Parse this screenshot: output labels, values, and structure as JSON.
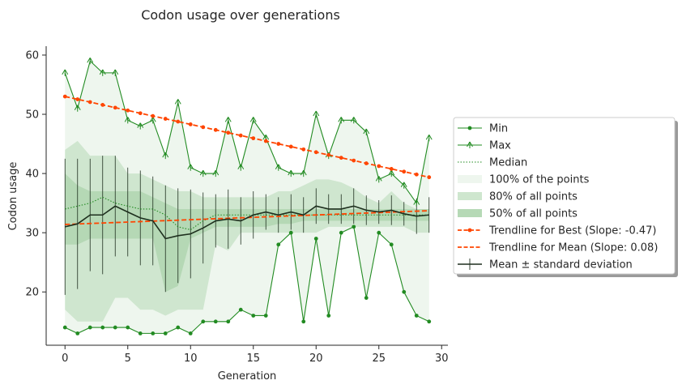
{
  "chart_data": {
    "type": "line",
    "title": "Codon usage over generations",
    "xlabel": "Generation",
    "ylabel": "Codon usage",
    "xlim": [
      -1.5,
      30.5
    ],
    "ylim": [
      11,
      61.5
    ],
    "x_ticks": [
      0,
      5,
      10,
      15,
      20,
      25,
      30
    ],
    "y_ticks": [
      20,
      30,
      40,
      50,
      60
    ],
    "grid": false,
    "legend_position": "right",
    "x": [
      0,
      1,
      2,
      3,
      4,
      5,
      6,
      7,
      8,
      9,
      10,
      11,
      12,
      13,
      14,
      15,
      16,
      17,
      18,
      19,
      20,
      21,
      22,
      23,
      24,
      25,
      26,
      27,
      28,
      29
    ],
    "series": [
      {
        "name": "Min",
        "color": "#228b22",
        "marker": "circle",
        "values": [
          14,
          13,
          14,
          14,
          14,
          14,
          13,
          13,
          13,
          14,
          13,
          15,
          15,
          15,
          17,
          16,
          16,
          28,
          30,
          15,
          29,
          16,
          30,
          31,
          19,
          30,
          28,
          20,
          16,
          15
        ]
      },
      {
        "name": "Max",
        "color": "#228b22",
        "marker": "tri",
        "values": [
          57,
          51,
          59,
          57,
          57,
          49,
          48,
          49,
          43,
          52,
          41,
          40,
          40,
          49,
          41,
          49,
          46,
          41,
          40,
          40,
          50,
          43,
          49,
          49,
          47,
          39,
          40,
          38,
          35,
          46
        ]
      },
      {
        "name": "Median",
        "color": "#228b22",
        "style": "dotted",
        "values": [
          34,
          34.5,
          35,
          36,
          35,
          34.5,
          34,
          34,
          33,
          31,
          30.5,
          32,
          33,
          33,
          33,
          33,
          33,
          33,
          33,
          33,
          33,
          33,
          33,
          33,
          33,
          33,
          33,
          33,
          33,
          33
        ]
      },
      {
        "name": "Trendline for Best (Slope: -0.47)",
        "color": "#ff4500",
        "style": "dashed",
        "marker": "circle",
        "values": [
          53,
          52.53,
          52.06,
          51.59,
          51.12,
          50.65,
          50.18,
          49.71,
          49.24,
          48.77,
          48.3,
          47.83,
          47.36,
          46.89,
          46.42,
          45.95,
          45.48,
          45.01,
          44.54,
          44.07,
          43.6,
          43.13,
          42.66,
          42.19,
          41.72,
          41.25,
          40.78,
          40.31,
          39.84,
          39.37
        ]
      },
      {
        "name": "Trendline for Mean (Slope: 0.08)",
        "color": "#ff4500",
        "style": "dashed",
        "values": [
          31.4,
          31.48,
          31.56,
          31.64,
          31.72,
          31.8,
          31.88,
          31.96,
          32.04,
          32.12,
          32.2,
          32.28,
          32.36,
          32.44,
          32.52,
          32.6,
          32.68,
          32.76,
          32.84,
          32.92,
          33,
          33.08,
          33.16,
          33.24,
          33.32,
          33.4,
          33.48,
          33.56,
          33.64,
          33.72
        ]
      },
      {
        "name": "Mean ± standard deviation",
        "color": "#1e2f1e",
        "errorbars": true,
        "values": [
          31,
          31.5,
          33,
          33,
          34.5,
          33.5,
          32.5,
          32,
          29,
          29.5,
          29.8,
          30.8,
          32,
          32.3,
          32,
          33,
          33.5,
          33,
          33.5,
          33,
          34.5,
          34,
          34,
          34.5,
          33.8,
          33.5,
          33.8,
          33.2,
          32.8,
          33
        ],
        "std": [
          11.5,
          11,
          9.5,
          10,
          8.5,
          7.5,
          8,
          7.5,
          9,
          8,
          7.5,
          6,
          4.5,
          5,
          4,
          4,
          3,
          3,
          3,
          3,
          3,
          2.5,
          2.5,
          3,
          2.5,
          2,
          2.5,
          2,
          3,
          3
        ]
      }
    ],
    "bands": [
      {
        "name": "100% of the points",
        "color": "#228b22",
        "opacity": 0.08,
        "lower": [
          14,
          13,
          14,
          14,
          14,
          14,
          13,
          13,
          13,
          14,
          13,
          15,
          15,
          15,
          17,
          16,
          16,
          28,
          30,
          15,
          29,
          16,
          30,
          31,
          19,
          30,
          28,
          20,
          16,
          15
        ],
        "upper": [
          57,
          51,
          59,
          57,
          57,
          49,
          48,
          49,
          43,
          52,
          41,
          40,
          40,
          49,
          41,
          49,
          46,
          41,
          40,
          40,
          50,
          43,
          49,
          49,
          47,
          39,
          40,
          38,
          35,
          46
        ]
      },
      {
        "name": "80% of all points",
        "color": "#228b22",
        "opacity": 0.15,
        "lower": [
          17,
          15,
          15,
          15,
          19,
          19,
          17,
          17,
          16,
          17,
          17,
          17,
          28,
          27,
          30,
          30,
          30,
          30,
          30,
          30,
          30,
          31,
          31,
          31,
          31,
          31,
          31,
          31,
          30,
          30
        ],
        "upper": [
          44,
          45.5,
          43,
          43,
          43,
          40,
          40,
          39,
          38,
          37,
          37,
          36,
          36,
          36,
          36,
          36,
          36,
          37,
          37,
          38,
          39,
          39,
          38.5,
          37.5,
          36,
          35,
          37,
          35,
          34,
          34
        ]
      },
      {
        "name": "50% of all points",
        "color": "#228b22",
        "opacity": 0.15,
        "lower": [
          28,
          28,
          29,
          29,
          29,
          29,
          29,
          29,
          20,
          21,
          29,
          30,
          31,
          31,
          31,
          31,
          31,
          31.5,
          31.5,
          32,
          32,
          32,
          32,
          32,
          32,
          32,
          32,
          32,
          32,
          32
        ],
        "upper": [
          40,
          38,
          37,
          37,
          37,
          37,
          37,
          36,
          35,
          34,
          34,
          34,
          34,
          34,
          34,
          34,
          34,
          34,
          34,
          34,
          34,
          34,
          34,
          34,
          34,
          34,
          34,
          34,
          34,
          34
        ]
      }
    ]
  }
}
